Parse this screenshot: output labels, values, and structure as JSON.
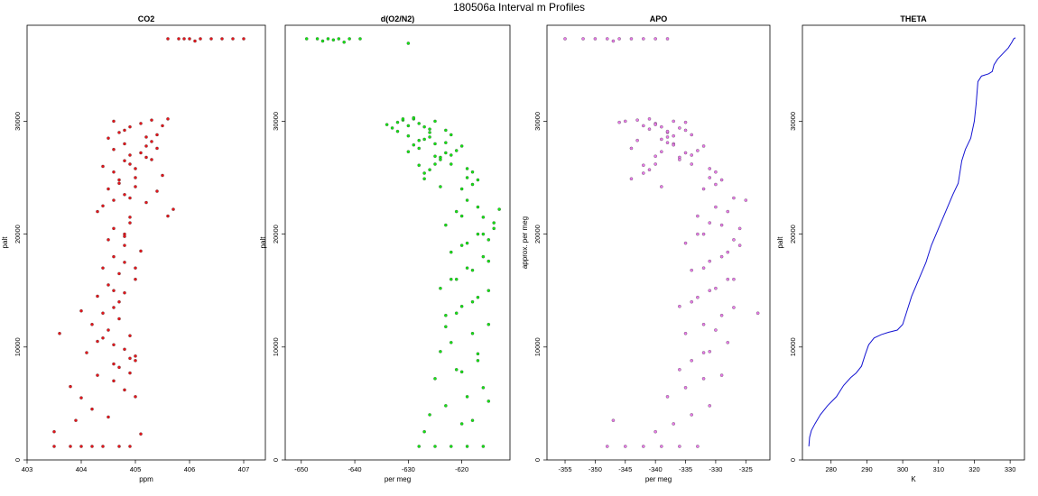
{
  "figure": {
    "title": "180506a   Interval m Profiles"
  },
  "chart_data": [
    {
      "type": "scatter",
      "title": "CO2",
      "xlabel": "ppm",
      "ylabel": "palt",
      "xlim": [
        403.0,
        407.4
      ],
      "ylim": [
        0,
        38500
      ],
      "xticks": [
        403,
        404,
        405,
        406,
        407
      ],
      "yticks": [
        0,
        10000,
        20000,
        30000
      ],
      "color": "#e8141a",
      "series": [
        {
          "x": [
            403.5,
            403.8,
            404.0,
            404.2,
            404.4,
            404.7,
            404.9,
            403.5,
            403.9,
            404.2,
            404.0,
            403.8,
            404.3,
            404.6,
            404.9,
            404.1,
            404.3,
            404.5,
            404.2,
            404.4,
            404.7,
            404.3,
            404.5,
            404.7,
            404.4,
            404.6,
            404.8,
            404.5,
            404.6,
            404.9,
            404.3,
            404.4,
            404.6,
            404.8,
            404.5,
            404.7,
            405.0,
            404.6,
            404.4,
            404.8,
            404.9,
            404.6,
            404.8,
            404.5,
            404.7,
            404.9,
            404.6,
            404.8,
            405.0,
            404.7,
            404.9,
            404.6,
            404.8,
            405.0,
            404.7,
            404.9,
            404.6,
            404.8,
            405.0,
            404.5,
            405.1,
            404.6,
            404.8,
            404.9,
            405.1,
            404.7,
            404.9,
            405.2,
            404.8,
            405.0,
            404.6,
            404.9,
            405.1,
            405.3,
            405.0,
            405.2,
            404.8,
            405.0,
            405.2,
            405.4,
            405.1,
            405.3,
            405.5,
            405.2,
            405.4,
            405.6,
            405.3,
            405.5,
            405.7,
            405.4,
            405.6,
            405.6,
            405.8,
            405.9,
            406.0,
            406.2,
            406.4,
            406.6,
            406.8,
            407.0,
            406.1,
            403.6,
            404.0,
            404.4,
            404.8,
            405.0
          ],
          "y": [
            1200,
            1200,
            1200,
            1200,
            1200,
            1200,
            1200,
            2500,
            3500,
            4500,
            5500,
            6500,
            7500,
            8500,
            9000,
            9500,
            10500,
            11500,
            12000,
            13000,
            14000,
            14500,
            15500,
            16500,
            17000,
            18000,
            19000,
            19500,
            20500,
            21000,
            22000,
            22500,
            23000,
            23500,
            24000,
            24500,
            25000,
            25500,
            26000,
            26500,
            27000,
            27500,
            28000,
            28500,
            29000,
            29500,
            30000,
            20000,
            16000,
            12500,
            11000,
            10200,
            9800,
            8800,
            8200,
            7700,
            7000,
            6200,
            5600,
            3800,
            2300,
            15000,
            17500,
            21500,
            18500,
            24800,
            23200,
            22800,
            19800,
            17000,
            13500,
            26200,
            27200,
            28200,
            25800,
            27800,
            29200,
            24200,
            26800,
            28800,
            29800,
            30100,
            29600,
            28600,
            27600,
            30200,
            26600,
            25200,
            22200,
            23800,
            21600,
            37300,
            37300,
            37300,
            37300,
            37300,
            37300,
            37300,
            37300,
            37300,
            37100,
            11200,
            13200,
            10800,
            14800,
            9200
          ]
        }
      ]
    },
    {
      "type": "scatter",
      "title": "d(O2/N2)",
      "xlabel": "per meg",
      "ylabel": "palt",
      "xlim": [
        -653,
        -611
      ],
      "ylim": [
        0,
        38500
      ],
      "xticks": [
        -650,
        -640,
        -630,
        -620
      ],
      "yticks": [
        0,
        10000,
        20000,
        30000
      ],
      "color": "#14e614",
      "series": [
        {
          "x": [
            -628,
            -625,
            -622,
            -619,
            -616,
            -627,
            -620,
            -626,
            -623,
            -619,
            -616,
            -625,
            -621,
            -617,
            -624,
            -622,
            -618,
            -615,
            -623,
            -620,
            -617,
            -624,
            -621,
            -618,
            -615,
            -622,
            -619,
            -616,
            -623,
            -620,
            -617,
            -621,
            -618,
            -615,
            -622,
            -619,
            -616,
            -620,
            -617,
            -614,
            -621,
            -619,
            -616,
            -613,
            -620,
            -617,
            -614,
            -618,
            -615,
            -622,
            -619,
            -624,
            -621,
            -618,
            -625,
            -622,
            -619,
            -626,
            -623,
            -620,
            -627,
            -628,
            -625,
            -622,
            -629,
            -626,
            -623,
            -630,
            -627,
            -624,
            -631,
            -629,
            -626,
            -623,
            -632,
            -628,
            -625,
            -630,
            -627,
            -624,
            -633,
            -631,
            -628,
            -625,
            -629,
            -626,
            -632,
            -627,
            -630,
            -628,
            -634,
            -649,
            -647,
            -645,
            -643,
            -641,
            -639,
            -646,
            -644,
            -642,
            -630,
            -618,
            -615,
            -620,
            -617,
            -623
          ],
          "y": [
            1200,
            1200,
            1200,
            1200,
            1200,
            2500,
            3200,
            4000,
            4800,
            5600,
            6400,
            7200,
            8000,
            8800,
            9600,
            10400,
            11200,
            12000,
            12800,
            13600,
            14400,
            15200,
            16000,
            16800,
            17600,
            18400,
            19200,
            20000,
            20800,
            21600,
            22400,
            13000,
            14000,
            15000,
            16000,
            17000,
            18000,
            19000,
            20000,
            21000,
            22000,
            23000,
            21500,
            22200,
            24000,
            24800,
            20500,
            25500,
            19500,
            26200,
            25000,
            26800,
            27400,
            24400,
            28000,
            27000,
            25800,
            28600,
            29200,
            27800,
            29500,
            29800,
            30000,
            28800,
            30200,
            29000,
            27200,
            29600,
            28400,
            26600,
            30100,
            30300,
            29300,
            28100,
            29900,
            27600,
            26200,
            28700,
            25400,
            24200,
            29400,
            30200,
            28300,
            26900,
            27900,
            25700,
            29100,
            24900,
            27300,
            26100,
            29700,
            37300,
            37300,
            37300,
            37300,
            37300,
            37300,
            37100,
            37200,
            37000,
            36900,
            3500,
            5200,
            7800,
            9400,
            11800
          ]
        }
      ]
    },
    {
      "type": "scatter",
      "title": "APO",
      "xlabel": "per meg",
      "ylabel": "approx. per meg",
      "xlim": [
        -358,
        -321
      ],
      "ylim": [
        0,
        38500
      ],
      "xticks": [
        -355,
        -350,
        -345,
        -340,
        -335,
        -330,
        -325
      ],
      "yticks": [
        0,
        10000,
        20000,
        30000
      ],
      "color": "#e87ae8",
      "series": [
        {
          "x": [
            -348,
            -345,
            -342,
            -339,
            -336,
            -333,
            -347,
            -340,
            -337,
            -334,
            -331,
            -338,
            -335,
            -332,
            -336,
            -334,
            -331,
            -328,
            -335,
            -332,
            -329,
            -336,
            -333,
            -330,
            -327,
            -334,
            -331,
            -328,
            -335,
            -332,
            -329,
            -333,
            -330,
            -327,
            -334,
            -331,
            -328,
            -332,
            -329,
            -326,
            -333,
            -331,
            -328,
            -325,
            -332,
            -329,
            -326,
            -330,
            -327,
            -334,
            -331,
            -336,
            -333,
            -330,
            -337,
            -334,
            -331,
            -338,
            -335,
            -332,
            -339,
            -340,
            -337,
            -334,
            -341,
            -338,
            -335,
            -342,
            -339,
            -336,
            -343,
            -341,
            -338,
            -335,
            -344,
            -340,
            -337,
            -342,
            -339,
            -336,
            -345,
            -343,
            -340,
            -337,
            -341,
            -338,
            -344,
            -339,
            -342,
            -340,
            -346,
            -355,
            -352,
            -350,
            -348,
            -346,
            -344,
            -342,
            -340,
            -338,
            -347,
            -330,
            -327,
            -332,
            -329,
            -323
          ],
          "y": [
            1200,
            1200,
            1200,
            1200,
            1200,
            1200,
            3500,
            2500,
            3200,
            4000,
            4800,
            5600,
            6400,
            7200,
            8000,
            8800,
            9600,
            10400,
            11200,
            12000,
            12800,
            13600,
            14400,
            15200,
            16000,
            16800,
            17600,
            18400,
            19200,
            20000,
            20800,
            21600,
            22400,
            23200,
            14000,
            15000,
            16000,
            17000,
            18000,
            19000,
            20000,
            21000,
            22000,
            23000,
            24000,
            24800,
            20500,
            25500,
            19500,
            26200,
            25000,
            26800,
            27400,
            24400,
            28000,
            27000,
            25800,
            28600,
            29200,
            27800,
            29500,
            29800,
            30000,
            28800,
            30200,
            29000,
            27200,
            29600,
            28400,
            26600,
            30100,
            29300,
            28100,
            29900,
            27600,
            26200,
            28700,
            25400,
            24200,
            29400,
            30000,
            28300,
            26900,
            27900,
            25700,
            29100,
            24900,
            27300,
            26100,
            29700,
            29900,
            37300,
            37300,
            37300,
            37300,
            37300,
            37300,
            37300,
            37300,
            37300,
            37100,
            11500,
            13500,
            9500,
            7500,
            13000
          ]
        }
      ]
    },
    {
      "type": "line",
      "title": "THETA",
      "xlabel": "K",
      "ylabel": "palt",
      "xlim": [
        272,
        334
      ],
      "ylim": [
        0,
        38500
      ],
      "xticks": [
        280,
        290,
        300,
        310,
        320,
        330
      ],
      "yticks": [
        0,
        10000,
        20000,
        30000
      ],
      "color": "#1414d2",
      "series": [
        {
          "x": [
            273.8,
            274.0,
            274.5,
            275.5,
            277.0,
            279.0,
            281.5,
            283.5,
            285.5,
            287.0,
            288.5,
            289.5,
            290.5,
            292.0,
            294.0,
            296.0,
            298.5,
            300.0,
            301.0,
            302.5,
            304.5,
            306.5,
            308.0,
            310.0,
            312.0,
            314.0,
            315.5,
            316.5,
            317.5,
            319.0,
            320.0,
            320.5,
            321.0,
            322.0,
            324.0,
            325.0,
            325.5,
            326.5,
            328.0,
            329.5,
            330.5,
            331.0,
            331.5
          ],
          "y": [
            1200,
            2000,
            2600,
            3200,
            4000,
            4800,
            5600,
            6600,
            7300,
            7700,
            8300,
            9300,
            10200,
            10800,
            11100,
            11300,
            11500,
            12000,
            13000,
            14500,
            16000,
            17500,
            19000,
            20500,
            22000,
            23500,
            24500,
            26500,
            27500,
            28500,
            30000,
            31500,
            33500,
            34000,
            34200,
            34400,
            35000,
            35500,
            36000,
            36500,
            37000,
            37300,
            37400
          ]
        }
      ]
    }
  ]
}
